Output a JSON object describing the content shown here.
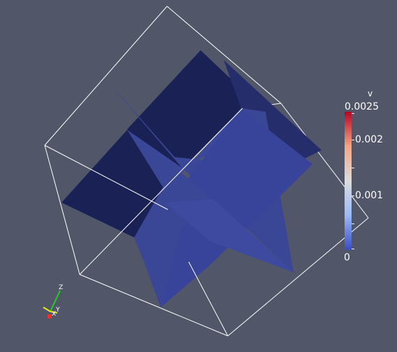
{
  "window": {
    "background": "#525669"
  },
  "scene": {
    "object": "box-with-intersecting-planes",
    "plane_color": "#3a4696",
    "plane_shadow_color": "#1a2155",
    "outline_color": "#ffffff"
  },
  "colorbar": {
    "title": "v",
    "labels": {
      "max": "0.0025",
      "mid_high": "0.002",
      "mid_low": "0.001",
      "min": "0"
    },
    "colors": {
      "top": "#b40426",
      "middle": "#dddddd",
      "bottom": "#3b4cc0"
    }
  },
  "axes": {
    "z_label": "Z",
    "y_label": "Y",
    "x_label": "X",
    "colors": {
      "x": "#ff2a2a",
      "y": "#e8e81a",
      "z": "#22cc22"
    }
  }
}
